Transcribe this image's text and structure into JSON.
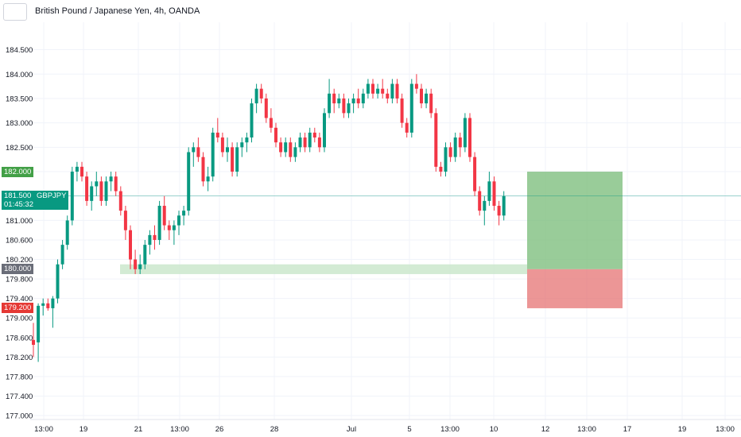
{
  "header": {
    "title": "British Pound / Japanese Yen, 4h, OANDA"
  },
  "badges": {
    "target": {
      "label": "182.000",
      "color": "#43a047"
    },
    "current": {
      "label": "181.500",
      "symbol": "GBPJPY",
      "countdown": "01:45:32",
      "color": "#089981"
    },
    "entry": {
      "label": "180.000",
      "color": "#6a6d78"
    },
    "stop": {
      "label": "179.200",
      "color": "#e53935"
    }
  },
  "colors": {
    "up": "#089981",
    "down": "#f23645",
    "profit_zone": "#7fbf7f",
    "loss_zone": "#e57373",
    "support_zone": "#c8e6c9",
    "price_line": "#089981"
  },
  "chart_data": {
    "type": "candlestick",
    "title": "British Pound / Japanese Yen, 4h, OANDA",
    "symbol": "GBPJPY",
    "ylim": [
      177.0,
      184.9
    ],
    "y_ticks": [
      "184.500",
      "184.000",
      "183.500",
      "183.000",
      "182.500",
      "182.000",
      "181.500",
      "181.000",
      "180.600",
      "180.200",
      "179.800",
      "179.400",
      "179.000",
      "178.600",
      "178.200",
      "177.800",
      "177.400",
      "177.000"
    ],
    "x_tick_labels": [
      "13:00",
      "19",
      "21",
      "13:00",
      "26",
      "28",
      "Jul",
      "5",
      "13:00",
      "10",
      "12",
      "13:00",
      "17",
      "19",
      "13:00"
    ],
    "current_price": 181.5,
    "candles": [
      [
        178.55,
        178.9,
        178.2,
        178.45
      ],
      [
        178.5,
        179.3,
        178.1,
        179.25
      ],
      [
        179.25,
        179.4,
        179.05,
        179.3
      ],
      [
        179.3,
        179.4,
        179.15,
        179.2
      ],
      [
        179.2,
        179.45,
        178.8,
        179.4
      ],
      [
        179.4,
        180.2,
        179.3,
        180.1
      ],
      [
        180.1,
        180.6,
        180.0,
        180.5
      ],
      [
        180.5,
        181.1,
        180.4,
        181.0
      ],
      [
        181.0,
        182.1,
        180.9,
        182.0
      ],
      [
        182.0,
        182.2,
        181.8,
        182.1
      ],
      [
        182.1,
        182.2,
        181.8,
        181.9
      ],
      [
        181.9,
        182.0,
        181.3,
        181.4
      ],
      [
        181.4,
        181.8,
        181.2,
        181.7
      ],
      [
        181.7,
        182.0,
        181.5,
        181.8
      ],
      [
        181.8,
        181.9,
        181.3,
        181.4
      ],
      [
        181.4,
        181.9,
        181.3,
        181.8
      ],
      [
        181.8,
        182.0,
        181.6,
        181.9
      ],
      [
        181.9,
        182.0,
        181.5,
        181.6
      ],
      [
        181.6,
        181.7,
        181.1,
        181.2
      ],
      [
        181.2,
        181.3,
        180.6,
        180.8
      ],
      [
        180.8,
        180.9,
        180.0,
        180.2
      ],
      [
        180.2,
        180.4,
        179.9,
        180.0
      ],
      [
        180.0,
        180.3,
        179.9,
        180.1
      ],
      [
        180.1,
        180.6,
        180.0,
        180.5
      ],
      [
        180.5,
        180.8,
        180.3,
        180.7
      ],
      [
        180.7,
        180.9,
        180.4,
        180.6
      ],
      [
        180.6,
        181.4,
        180.5,
        181.3
      ],
      [
        181.3,
        181.5,
        180.8,
        180.9
      ],
      [
        180.9,
        181.0,
        180.6,
        180.8
      ],
      [
        180.8,
        181.0,
        180.5,
        180.9
      ],
      [
        180.9,
        181.2,
        180.7,
        181.1
      ],
      [
        181.1,
        181.3,
        180.9,
        181.2
      ],
      [
        181.2,
        182.5,
        181.1,
        182.4
      ],
      [
        182.4,
        182.6,
        182.1,
        182.5
      ],
      [
        182.5,
        182.7,
        182.2,
        182.3
      ],
      [
        182.3,
        182.4,
        181.7,
        181.8
      ],
      [
        181.8,
        182.1,
        181.6,
        181.9
      ],
      [
        181.9,
        182.9,
        181.8,
        182.8
      ],
      [
        182.8,
        183.1,
        182.6,
        182.7
      ],
      [
        182.7,
        182.8,
        182.3,
        182.4
      ],
      [
        182.4,
        182.7,
        182.2,
        182.5
      ],
      [
        182.5,
        182.6,
        181.9,
        182.0
      ],
      [
        182.0,
        182.6,
        181.9,
        182.5
      ],
      [
        182.5,
        182.7,
        182.3,
        182.6
      ],
      [
        182.6,
        182.8,
        182.4,
        182.7
      ],
      [
        182.7,
        183.5,
        182.6,
        183.4
      ],
      [
        183.4,
        183.8,
        183.2,
        183.7
      ],
      [
        183.7,
        183.8,
        183.4,
        183.5
      ],
      [
        183.5,
        183.6,
        183.0,
        183.1
      ],
      [
        183.1,
        183.3,
        182.8,
        182.9
      ],
      [
        182.9,
        183.0,
        182.5,
        182.6
      ],
      [
        182.6,
        182.7,
        182.3,
        182.4
      ],
      [
        182.4,
        182.7,
        182.3,
        182.6
      ],
      [
        182.6,
        182.7,
        182.2,
        182.3
      ],
      [
        182.3,
        182.6,
        182.2,
        182.5
      ],
      [
        182.5,
        182.8,
        182.4,
        182.7
      ],
      [
        182.7,
        182.8,
        182.4,
        182.5
      ],
      [
        182.5,
        182.9,
        182.4,
        182.8
      ],
      [
        182.8,
        182.9,
        182.6,
        182.7
      ],
      [
        182.7,
        182.8,
        182.4,
        182.5
      ],
      [
        182.5,
        183.3,
        182.4,
        183.2
      ],
      [
        183.2,
        183.9,
        183.1,
        183.6
      ],
      [
        183.6,
        183.7,
        183.2,
        183.4
      ],
      [
        183.4,
        183.6,
        183.3,
        183.5
      ],
      [
        183.5,
        183.6,
        183.1,
        183.2
      ],
      [
        183.2,
        183.5,
        183.1,
        183.4
      ],
      [
        183.4,
        183.6,
        183.2,
        183.5
      ],
      [
        183.5,
        183.7,
        183.3,
        183.4
      ],
      [
        183.4,
        183.7,
        183.3,
        183.6
      ],
      [
        183.6,
        183.9,
        183.5,
        183.8
      ],
      [
        183.8,
        183.9,
        183.5,
        183.6
      ],
      [
        183.6,
        183.8,
        183.5,
        183.7
      ],
      [
        183.7,
        183.9,
        183.5,
        183.6
      ],
      [
        183.6,
        183.7,
        183.4,
        183.5
      ],
      [
        183.5,
        183.9,
        183.4,
        183.8
      ],
      [
        183.8,
        183.9,
        183.4,
        183.5
      ],
      [
        183.5,
        183.6,
        182.9,
        183.0
      ],
      [
        183.0,
        183.1,
        182.7,
        182.8
      ],
      [
        182.8,
        183.9,
        182.7,
        183.8
      ],
      [
        183.8,
        184.0,
        183.6,
        183.7
      ],
      [
        183.7,
        183.8,
        183.3,
        183.4
      ],
      [
        183.4,
        183.7,
        183.3,
        183.6
      ],
      [
        183.6,
        183.7,
        183.1,
        183.2
      ],
      [
        183.2,
        183.3,
        182.0,
        182.1
      ],
      [
        182.1,
        182.2,
        181.9,
        182.0
      ],
      [
        182.0,
        182.6,
        181.9,
        182.5
      ],
      [
        182.5,
        182.6,
        182.2,
        182.3
      ],
      [
        182.3,
        182.8,
        182.2,
        182.7
      ],
      [
        182.7,
        182.8,
        182.3,
        182.5
      ],
      [
        182.5,
        183.2,
        182.4,
        183.1
      ],
      [
        183.1,
        183.2,
        182.2,
        182.3
      ],
      [
        182.3,
        182.4,
        181.5,
        181.6
      ],
      [
        181.6,
        181.7,
        181.1,
        181.2
      ],
      [
        181.2,
        181.5,
        180.9,
        181.4
      ],
      [
        181.4,
        182.0,
        181.3,
        181.8
      ],
      [
        181.8,
        181.9,
        181.2,
        181.3
      ],
      [
        181.3,
        181.4,
        180.9,
        181.1
      ],
      [
        181.1,
        181.6,
        181.0,
        181.5
      ]
    ],
    "zones": {
      "support": {
        "from": 179.95,
        "to": 180.05
      },
      "take_profit": {
        "from": 180.0,
        "to": 182.0
      },
      "stop_loss": {
        "from": 179.2,
        "to": 180.0
      }
    }
  }
}
